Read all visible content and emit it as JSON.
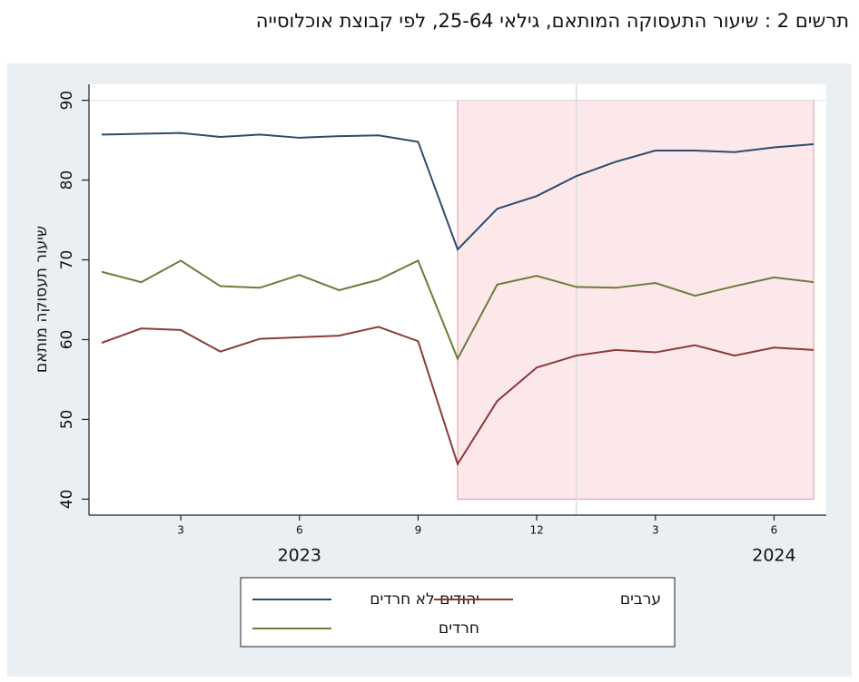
{
  "chart_data": {
    "type": "line",
    "title": "תרשים 2 : שיעור התעסוקה המותאם, גילאי 25-64, לפי קבוצת אוכלוסייה",
    "y_label": "שיעור תעסוקה מותאם",
    "x": [
      "2023-01",
      "2023-02",
      "2023-03",
      "2023-04",
      "2023-05",
      "2023-06",
      "2023-07",
      "2023-08",
      "2023-09",
      "2023-10",
      "2023-11",
      "2023-12",
      "2024-01",
      "2024-02",
      "2024-03",
      "2024-04",
      "2024-05",
      "2024-06",
      "2024-07"
    ],
    "xticks": [
      {
        "value": "2023-03",
        "label": "3"
      },
      {
        "value": "2023-06",
        "label": "6"
      },
      {
        "value": "2023-09",
        "label": "9"
      },
      {
        "value": "2023-12",
        "label": "12"
      },
      {
        "value": "2024-03",
        "label": "3"
      },
      {
        "value": "2024-06",
        "label": "6"
      }
    ],
    "year_labels": [
      {
        "value": "2023-06",
        "label": "2023"
      },
      {
        "value": "2024-06",
        "label": "2024"
      }
    ],
    "vline": "2024-01",
    "shade": {
      "from": "2023-10",
      "to": "2024-07",
      "ymin": 40,
      "ymax": 90,
      "color": "#fbe4e6",
      "edge": "#e8a5ac"
    },
    "ylim": [
      38,
      92
    ],
    "yticks": [
      40,
      50,
      60,
      70,
      80,
      90
    ],
    "series": [
      {
        "name": "יהודים לא חרדים",
        "color": "#2e4a6e",
        "values": [
          85.7,
          85.8,
          85.9,
          85.4,
          85.7,
          85.3,
          85.5,
          85.6,
          84.8,
          71.3,
          76.4,
          78.0,
          80.5,
          82.3,
          83.7,
          83.7,
          83.5,
          84.1,
          84.5
        ]
      },
      {
        "name": "ערבים",
        "color": "#8b3a3a",
        "values": [
          59.6,
          61.4,
          61.2,
          58.5,
          60.1,
          60.3,
          60.5,
          61.6,
          59.8,
          44.4,
          52.3,
          56.5,
          58.0,
          58.7,
          58.4,
          59.3,
          58.0,
          59.0,
          58.7
        ]
      },
      {
        "name": "חרדים",
        "color": "#6b7d3a",
        "values": [
          68.5,
          67.2,
          69.9,
          66.7,
          66.5,
          68.1,
          66.2,
          67.5,
          69.9,
          57.6,
          66.9,
          68.0,
          66.6,
          66.5,
          67.1,
          65.5,
          66.7,
          67.8,
          67.2
        ]
      }
    ]
  }
}
